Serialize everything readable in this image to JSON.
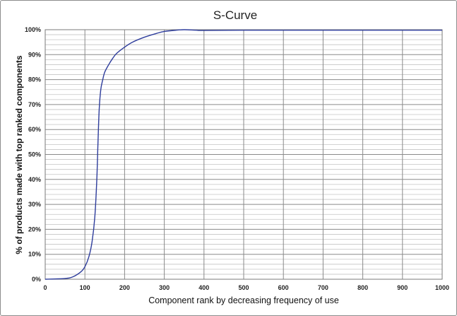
{
  "chart_data": {
    "type": "line",
    "title": "S-Curve",
    "xlabel": "Component rank by decreasing frequency of use",
    "ylabel": "% of products made with top ranked components",
    "xlim": [
      0,
      1000
    ],
    "ylim": [
      0,
      100
    ],
    "x_ticks": [
      "0",
      "100",
      "200",
      "300",
      "400",
      "500",
      "600",
      "700",
      "800",
      "900",
      "1000"
    ],
    "y_ticks": [
      "0%",
      "10%",
      "20%",
      "30%",
      "40%",
      "50%",
      "60%",
      "70%",
      "80%",
      "90%",
      "100%"
    ],
    "grid": true,
    "legend": "none",
    "line_color": "#2e3d9c",
    "grid_color": "#9a9a9a",
    "series": [
      {
        "x": [
          0,
          50,
          70,
          90,
          100,
          110,
          118,
          125,
          130,
          133,
          136,
          140,
          145,
          150,
          160,
          170,
          180,
          200,
          220,
          250,
          280,
          300,
          330,
          350,
          380,
          400,
          500,
          600,
          700,
          800,
          900,
          1000
        ],
        "y": [
          0,
          0.3,
          1,
          3,
          5,
          9,
          15,
          25,
          40,
          55,
          68,
          76,
          80,
          83,
          86,
          88.5,
          90.5,
          93,
          95,
          97,
          98.5,
          99.3,
          99.8,
          100,
          99.8,
          99.7,
          99.8,
          99.8,
          99.8,
          99.8,
          99.8,
          99.8
        ]
      }
    ]
  }
}
